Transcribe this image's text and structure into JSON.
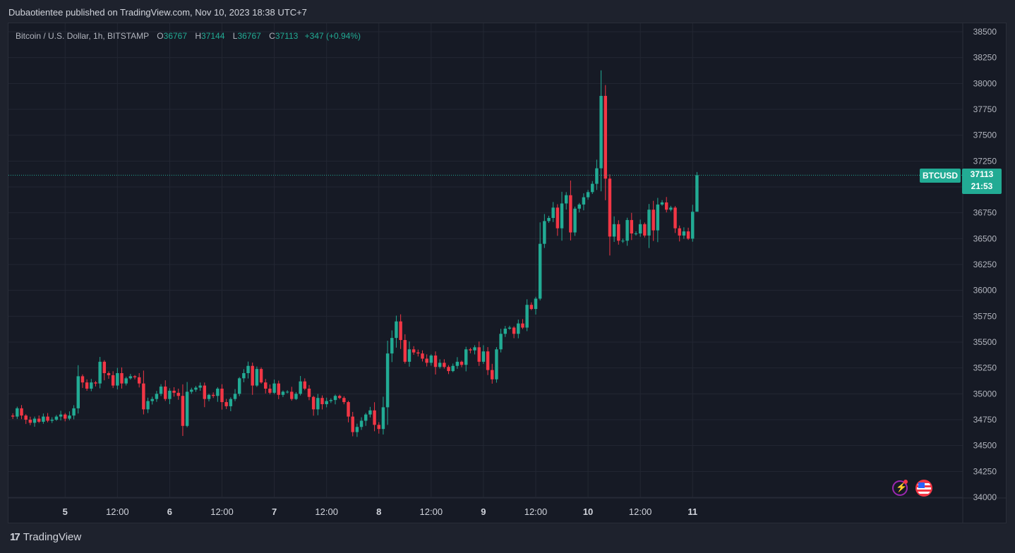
{
  "publish_line": "Dubaotientee published on TradingView.com, Nov 10, 2023 18:38 UTC+7",
  "header": {
    "symbol": "Bitcoin / U.S. Dollar, 1h, BITSTAMP",
    "o_label": "O",
    "o_value": "36767",
    "h_label": "H",
    "h_value": "37144",
    "l_label": "L",
    "l_value": "36767",
    "c_label": "C",
    "c_value": "37113",
    "change": "+347 (+0.94%)"
  },
  "price_tag": {
    "symbol": "BTCUSD",
    "price": "37113",
    "countdown": "21:53"
  },
  "footer": {
    "brand": "TradingView",
    "mark": "17"
  },
  "icons": {
    "flash": "flash-icon",
    "flag": "us-flag-icon"
  },
  "colors": {
    "up": "#22ab94",
    "down": "#f23645",
    "background": "#161a25",
    "grid": "#232733",
    "text": "#b2b5be"
  },
  "chart_data": {
    "type": "candlestick",
    "ylim": [
      34000,
      38500
    ],
    "y_ticks": [
      34000,
      34250,
      34500,
      34750,
      35000,
      35250,
      35500,
      35750,
      36000,
      36250,
      36500,
      36750,
      37000,
      37250,
      37500,
      37750,
      38000,
      38250,
      38500
    ],
    "x_ticks": [
      "5",
      "12:00",
      "6",
      "12:00",
      "7",
      "12:00",
      "8",
      "12:00",
      "9",
      "12:00",
      "10",
      "12:00",
      "11"
    ],
    "last_price": 37113,
    "closes": [
      34780,
      34860,
      34790,
      34750,
      34720,
      34760,
      34730,
      34780,
      34740,
      34750,
      34780,
      34800,
      34760,
      34790,
      34860,
      35170,
      35110,
      35050,
      35110,
      35100,
      35310,
      35200,
      35180,
      35080,
      35200,
      35100,
      35150,
      35170,
      35160,
      35100,
      34850,
      34930,
      34950,
      35000,
      35070,
      34950,
      35030,
      35010,
      34980,
      34690,
      35020,
      35040,
      35060,
      35080,
      34950,
      34990,
      34980,
      35050,
      34920,
      34880,
      34950,
      35000,
      35150,
      35200,
      35270,
      35080,
      35240,
      35110,
      35050,
      35010,
      35100,
      34990,
      35020,
      35020,
      34950,
      35000,
      35120,
      35050,
      34970,
      34850,
      34960,
      34900,
      34930,
      34940,
      34980,
      34960,
      34920,
      34780,
      34630,
      34680,
      34740,
      34800,
      34840,
      34700,
      34660,
      34870,
      35390,
      35540,
      35700,
      35520,
      35310,
      35430,
      35400,
      35390,
      35340,
      35300,
      35370,
      35260,
      35300,
      35260,
      35220,
      35270,
      35310,
      35280,
      35430,
      35420,
      35450,
      35310,
      35410,
      35230,
      35140,
      35430,
      35580,
      35630,
      35640,
      35580,
      35680,
      35640,
      35860,
      35820,
      35920,
      36450,
      36670,
      36700,
      36800,
      36600,
      36840,
      36920,
      36560,
      36790,
      36830,
      36900,
      36950,
      37030,
      37180,
      37880,
      37080,
      36520,
      36640,
      36480,
      36480,
      36680,
      36550,
      36550,
      36640,
      36530,
      36780,
      36580,
      36830,
      36850,
      36780,
      36800,
      36600,
      36530,
      36570,
      36500,
      36760,
      37113
    ],
    "x_range_hours": [
      -13,
      206
    ]
  }
}
